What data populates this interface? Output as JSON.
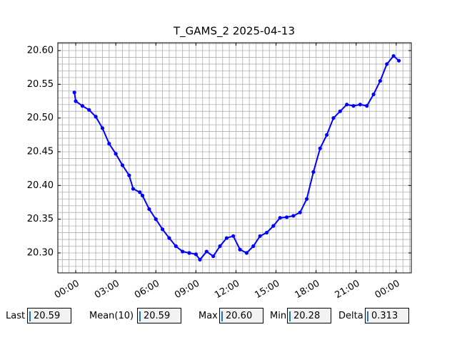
{
  "chart_data": {
    "type": "line",
    "title": "T_GAMS_2 2025-04-13",
    "x": [
      -0.1,
      0.0,
      0.5,
      1.0,
      1.5,
      2.0,
      2.5,
      3.0,
      3.5,
      4.0,
      4.3,
      4.8,
      5.0,
      5.5,
      6.0,
      6.5,
      7.0,
      7.5,
      8.0,
      8.5,
      9.0,
      9.3,
      9.8,
      10.3,
      10.8,
      11.3,
      11.8,
      12.3,
      12.8,
      13.3,
      13.8,
      14.3,
      14.8,
      15.3,
      15.8,
      16.3,
      16.8,
      17.3,
      17.8,
      18.3,
      18.8,
      19.3,
      19.8,
      20.3,
      20.8,
      21.3,
      21.8,
      22.3,
      22.8,
      23.3,
      23.8,
      24.2
    ],
    "series": [
      {
        "color": "#0000ff",
        "values": [
          20.538,
          20.525,
          20.518,
          20.512,
          20.502,
          20.485,
          20.462,
          20.447,
          20.43,
          20.415,
          20.395,
          20.39,
          20.385,
          20.365,
          20.35,
          20.335,
          20.322,
          20.31,
          20.302,
          20.3,
          20.298,
          20.29,
          20.302,
          20.295,
          20.31,
          20.322,
          20.325,
          20.305,
          20.3,
          20.31,
          20.325,
          20.33,
          20.34,
          20.352,
          20.353,
          20.355,
          20.36,
          20.38,
          20.42,
          20.455,
          20.475,
          20.5,
          20.51,
          20.52,
          20.518,
          20.52,
          20.518,
          20.535,
          20.555,
          20.58,
          20.592,
          20.585
        ]
      }
    ],
    "xlim": [
      -1.34,
      25.13
    ],
    "ylim": [
      20.2704,
      20.6116
    ],
    "xticks": [
      {
        "value": 0,
        "label": "00:00"
      },
      {
        "value": 3,
        "label": "03:00"
      },
      {
        "value": 6,
        "label": "06:00"
      },
      {
        "value": 9,
        "label": "09:00"
      },
      {
        "value": 12,
        "label": "12:00"
      },
      {
        "value": 15,
        "label": "15:00"
      },
      {
        "value": 18,
        "label": "18:00"
      },
      {
        "value": 21,
        "label": "21:00"
      },
      {
        "value": 24,
        "label": "00:00"
      }
    ],
    "yticks": [
      {
        "value": 20.3,
        "label": "20.30"
      },
      20.35,
      {
        "value": 20.4,
        "label": "20.40"
      },
      20.45,
      {
        "value": 20.5,
        "label": "20.50"
      },
      20.55,
      {
        "value": 20.6,
        "label": "20.60"
      }
    ],
    "xminorticks": [
      -1,
      -0.5,
      0.5,
      1,
      1.5,
      2,
      2.5,
      3.5,
      4,
      4.5,
      5,
      5.5,
      6.5,
      7,
      7.5,
      8,
      8.5,
      9.5,
      10,
      10.5,
      11,
      11.5,
      12.5,
      13,
      13.5,
      14,
      14.5,
      15.5,
      16,
      16.5,
      17,
      17.5,
      18.5,
      19,
      19.5,
      20,
      20.5,
      21.5,
      22,
      22.5,
      23,
      23.5,
      24.5,
      25
    ],
    "yminorticks": [
      20.28,
      20.29,
      20.31,
      20.32,
      20.33,
      20.34,
      20.36,
      20.37,
      20.38,
      20.39,
      20.41,
      20.42,
      20.43,
      20.44,
      20.46,
      20.47,
      20.48,
      20.49,
      20.51,
      20.52,
      20.53,
      20.54,
      20.56,
      20.57,
      20.58,
      20.59,
      20.61
    ],
    "grid": true
  },
  "widgets": [
    {
      "label": "Last",
      "value": "20.59"
    },
    {
      "label": "Mean(10)",
      "value": "20.59"
    },
    {
      "label": "Max",
      "value": "20.60"
    },
    {
      "label": "Min",
      "value": "20.28"
    },
    {
      "label": "Delta",
      "value": "0.313"
    }
  ]
}
